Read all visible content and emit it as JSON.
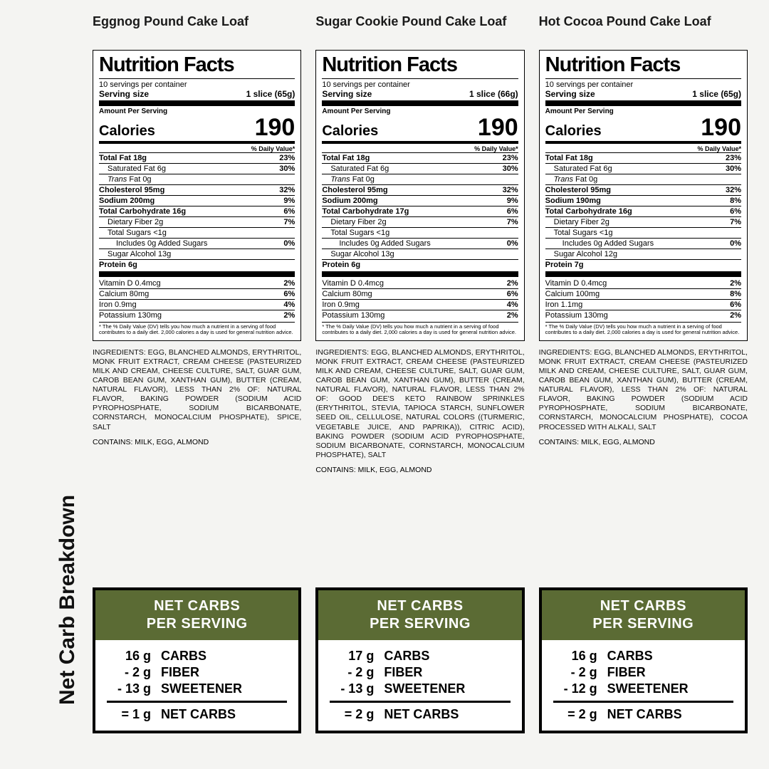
{
  "vertical_label": "Net Carb Breakdown",
  "colors": {
    "olive": "#5b6b34",
    "page_bg": "#f4f4f2",
    "panel_bg": "#ffffff",
    "text": "#111111"
  },
  "netcarb_header": "NET CARBS PER SERVING",
  "footnote": "* The % Daily Value (DV) tells you how much a nutrient in a serving of food contributes to a daily diet. 2,000 calories a day is used for general nutrition advice.",
  "products": [
    {
      "title": "Eggnog Pound Cake Loaf",
      "servings_per": "10 servings per container",
      "serving_size": "1 slice (65g)",
      "calories": "190",
      "rows": [
        {
          "l": "Total Fat 18g",
          "r": "23%",
          "bold": true
        },
        {
          "l": "Saturated Fat 6g",
          "r": "30%",
          "ind": 1
        },
        {
          "l": "Trans Fat 0g",
          "r": "",
          "ind": 1,
          "italic": true
        },
        {
          "l": "Cholesterol 95mg",
          "r": "32%",
          "bold": true
        },
        {
          "l": "Sodium 200mg",
          "r": "9%",
          "bold": true
        },
        {
          "l": "Total Carbohydrate 16g",
          "r": "6%",
          "bold": true
        },
        {
          "l": "Dietary Fiber 2g",
          "r": "7%",
          "ind": 1
        },
        {
          "l": "Total Sugars <1g",
          "r": "",
          "ind": 1
        },
        {
          "l": "Includes 0g Added Sugars",
          "r": "0%",
          "ind": 2
        },
        {
          "l": "Sugar Alcohol 13g",
          "r": "",
          "ind": 1
        },
        {
          "l": "Protein 6g",
          "r": "",
          "bold": true
        }
      ],
      "micros": [
        {
          "l": "Vitamin D 0.4mcg",
          "r": "2%"
        },
        {
          "l": "Calcium 80mg",
          "r": "6%"
        },
        {
          "l": "Iron 0.9mg",
          "r": "4%"
        },
        {
          "l": "Potassium 130mg",
          "r": "2%"
        }
      ],
      "ingredients": "INGREDIENTS: EGG, BLANCHED ALMONDS, ERYTHRITOL, MONK FRUIT EXTRACT, CREAM CHEESE (PASTEURIZED MILK AND CREAM, CHEESE CULTURE, SALT, GUAR GUM, CAROB BEAN GUM, XANTHAN GUM), BUTTER (CREAM, NATURAL FLAVOR), LESS THAN 2% OF: NATURAL FLAVOR, BAKING POWDER (SODIUM ACID PYROPHOSPHATE, SODIUM BICARBONATE, CORNSTARCH, MONOCALCIUM PHOSPHATE), SPICE, SALT",
      "contains": "CONTAINS: MILK, EGG, ALMOND",
      "netcarb": {
        "carbs": "16 g",
        "fiber": "- 2 g",
        "sweet": "- 13 g",
        "net": "= 1 g"
      }
    },
    {
      "title": "Sugar Cookie Pound Cake Loaf",
      "servings_per": "10 servings per container",
      "serving_size": "1 slice (66g)",
      "calories": "190",
      "rows": [
        {
          "l": "Total Fat 18g",
          "r": "23%",
          "bold": true
        },
        {
          "l": "Saturated Fat 6g",
          "r": "30%",
          "ind": 1
        },
        {
          "l": "Trans Fat 0g",
          "r": "",
          "ind": 1,
          "italic": true
        },
        {
          "l": "Cholesterol 95mg",
          "r": "32%",
          "bold": true
        },
        {
          "l": "Sodium 200mg",
          "r": "9%",
          "bold": true
        },
        {
          "l": "Total Carbohydrate 17g",
          "r": "6%",
          "bold": true
        },
        {
          "l": "Dietary Fiber 2g",
          "r": "7%",
          "ind": 1
        },
        {
          "l": "Total Sugars <1g",
          "r": "",
          "ind": 1
        },
        {
          "l": "Includes 0g Added Sugars",
          "r": "0%",
          "ind": 2
        },
        {
          "l": "Sugar Alcohol 13g",
          "r": "",
          "ind": 1
        },
        {
          "l": "Protein 6g",
          "r": "",
          "bold": true
        }
      ],
      "micros": [
        {
          "l": "Vitamin D 0.4mcg",
          "r": "2%"
        },
        {
          "l": "Calcium 80mg",
          "r": "6%"
        },
        {
          "l": "Iron 0.9mg",
          "r": "4%"
        },
        {
          "l": "Potassium 130mg",
          "r": "2%"
        }
      ],
      "ingredients": "INGREDIENTS: EGG, BLANCHED ALMONDS, ERYTHRITOL, MONK FRUIT EXTRACT, CREAM CHEESE (PASTEURIZED MILK AND CREAM, CHEESE CULTURE, SALT, GUAR GUM, CAROB BEAN GUM, XANTHAN GUM), BUTTER (CREAM, NATURAL FLAVOR), NATURAL FLAVOR, LESS THAN 2% OF: GOOD DEE'S KETO RAINBOW SPRINKLES (ERYTHRITOL, STEVIA, TAPIOCA STARCH, SUNFLOWER SEED OIL, CELLULOSE, NATURAL COLORS ((TURMERIC, VEGETABLE JUICE, AND PAPRIKA)), CITRIC ACID), BAKING POWDER (SODIUM ACID PYROPHOSPHATE, SODIUM BICARBONATE, CORNSTARCH, MONOCALCIUM PHOSPHATE), SALT",
      "contains": "CONTAINS: MILK, EGG, ALMOND",
      "netcarb": {
        "carbs": "17 g",
        "fiber": "- 2 g",
        "sweet": "- 13 g",
        "net": "= 2 g"
      }
    },
    {
      "title": "Hot Cocoa Pound Cake Loaf",
      "servings_per": "10 servings per container",
      "serving_size": "1 slice (65g)",
      "calories": "190",
      "rows": [
        {
          "l": "Total Fat 18g",
          "r": "23%",
          "bold": true
        },
        {
          "l": "Saturated Fat 6g",
          "r": "30%",
          "ind": 1
        },
        {
          "l": "Trans Fat 0g",
          "r": "",
          "ind": 1,
          "italic": true
        },
        {
          "l": "Cholesterol 95mg",
          "r": "32%",
          "bold": true
        },
        {
          "l": "Sodium 190mg",
          "r": "8%",
          "bold": true
        },
        {
          "l": "Total Carbohydrate 16g",
          "r": "6%",
          "bold": true
        },
        {
          "l": "Dietary Fiber 2g",
          "r": "7%",
          "ind": 1
        },
        {
          "l": "Total Sugars <1g",
          "r": "",
          "ind": 1
        },
        {
          "l": "Includes 0g Added Sugars",
          "r": "0%",
          "ind": 2
        },
        {
          "l": "Sugar Alcohol 12g",
          "r": "",
          "ind": 1
        },
        {
          "l": "Protein 7g",
          "r": "",
          "bold": true
        }
      ],
      "micros": [
        {
          "l": "Vitamin D 0.4mcg",
          "r": "2%"
        },
        {
          "l": "Calcium 100mg",
          "r": "8%"
        },
        {
          "l": "Iron 1.1mg",
          "r": "6%"
        },
        {
          "l": "Potassium 130mg",
          "r": "2%"
        }
      ],
      "ingredients": "INGREDIENTS: EGG, BLANCHED ALMONDS, ERYTHRITOL, MONK FRUIT EXTRACT, CREAM CHEESE (PASTEURIZED MILK AND CREAM, CHEESE CULTURE, SALT, GUAR GUM, CAROB BEAN GUM, XANTHAN GUM), BUTTER (CREAM, NATURAL FLAVOR), LESS THAN 2% OF: NATURAL FLAVOR, BAKING POWDER (SODIUM ACID PYROPHOSPHATE, SODIUM BICARBONATE, CORNSTARCH, MONOCALCIUM PHOSPHATE), COCOA PROCESSED WITH ALKALI, SALT",
      "contains": "CONTAINS: MILK, EGG, ALMOND",
      "netcarb": {
        "carbs": "16 g",
        "fiber": "- 2 g",
        "sweet": "- 12 g",
        "net": "= 2 g"
      }
    }
  ],
  "labels": {
    "nutrition_facts": "Nutrition Facts",
    "serving_size": "Serving size",
    "amount_per_serving": "Amount Per Serving",
    "calories": "Calories",
    "daily_value": "% Daily Value*",
    "carbs": "CARBS",
    "fiber": "FIBER",
    "sweetener": "SWEETENER",
    "net_carbs": "NET CARBS"
  }
}
